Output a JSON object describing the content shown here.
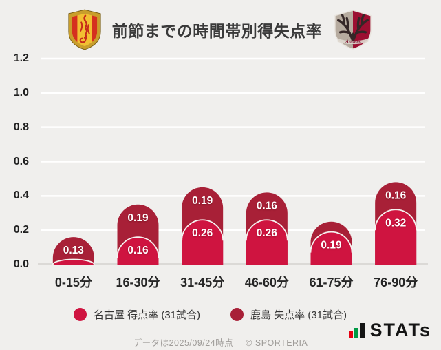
{
  "header": {
    "title": "前節までの時間帯別得失点率",
    "left_logo": "nagoya-grampus-crest",
    "right_logo": "kashima-antlers-crest"
  },
  "chart_data": {
    "type": "bar",
    "subtype": "stacked-rounded-columns",
    "title": "前節までの時間帯別得失点率",
    "categories": [
      "0-15分",
      "16-30分",
      "31-45分",
      "46-60分",
      "61-75分",
      "76-90分"
    ],
    "series": [
      {
        "name": "名古屋 得点率 (31試合)",
        "role": "front-bottom",
        "color": "#cf1440",
        "values": [
          0.03,
          0.16,
          0.26,
          0.26,
          0.19,
          0.32
        ],
        "labels": [
          null,
          "0.16",
          "0.26",
          "0.26",
          "0.19",
          "0.32"
        ]
      },
      {
        "name": "鹿島 失点率 (31試合)",
        "role": "back-stacked-top",
        "color": "#a82037",
        "values": [
          0.13,
          0.19,
          0.19,
          0.16,
          0.06,
          0.16
        ],
        "labels": [
          "0.13",
          "0.19",
          "0.19",
          "0.16",
          null,
          "0.16"
        ]
      }
    ],
    "ylim": [
      0,
      1.2
    ],
    "yticks": [
      "0.0",
      "0.2",
      "0.4",
      "0.6",
      "0.8",
      "1.0",
      "1.2"
    ],
    "grid": true,
    "gridline_color": "#ffffff",
    "baseline_color": "#dbd9d6",
    "background_color": "#f0efed",
    "value_label_color": "#ffffff",
    "cap_outline_color": "#f5f3f0",
    "legend_position": "bottom"
  },
  "legend": {
    "items": [
      {
        "label": "名古屋 得点率 (31試合)",
        "color": "#cf1440"
      },
      {
        "label": "鹿島 失点率 (31試合)",
        "color": "#a82037"
      }
    ]
  },
  "footer": {
    "caption": "データは2025/09/24時点",
    "copyright": "© SPORTERIA",
    "brand": "STATs"
  }
}
